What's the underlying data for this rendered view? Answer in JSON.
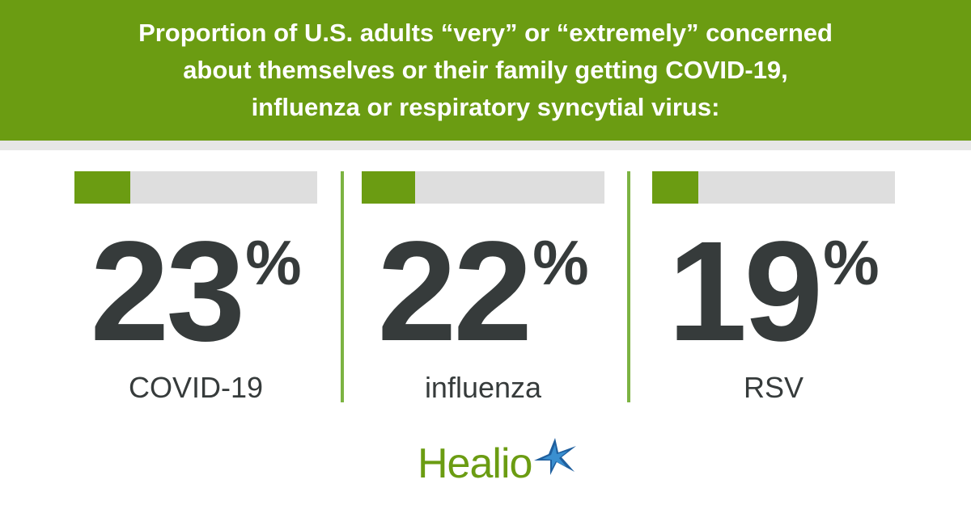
{
  "header": {
    "lines": [
      "Proportion of U.S. adults “very” or “extremely” concerned",
      "about themselves or their family getting COVID-19,",
      "influenza or respiratory syncytial virus:"
    ]
  },
  "chart_data": {
    "type": "bar",
    "categories": [
      "COVID-19",
      "influenza",
      "RSV"
    ],
    "values": [
      23,
      22,
      19
    ],
    "value_labels": [
      "23",
      "22",
      "19"
    ],
    "unit": "%",
    "ylim": [
      0,
      100
    ]
  },
  "colors": {
    "accent": "#6b9c12",
    "track": "#dedede",
    "text": "#363b3b",
    "divider": "#7cb342"
  },
  "logo": {
    "text": "Healio",
    "icon": "star-icon"
  }
}
